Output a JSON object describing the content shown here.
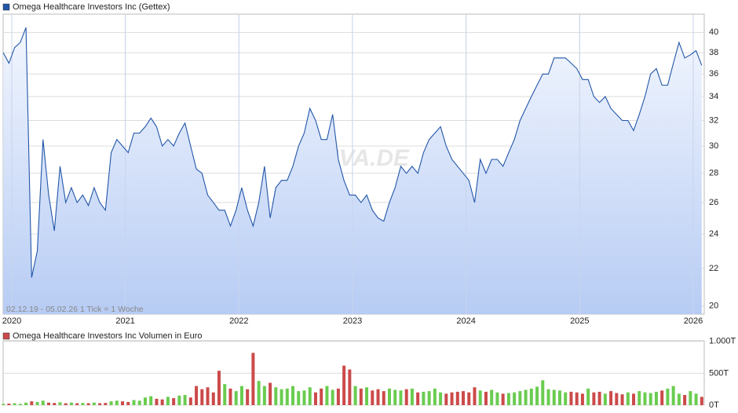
{
  "chart_data": [
    {
      "type": "line",
      "log": true,
      "grid": true,
      "annotation": "02.12.19 - 05.02.26   1 Tick = 1 Woche",
      "watermark": "ARIVA.DE",
      "x": [
        2019.925,
        2019.975,
        2020.025,
        2020.075,
        2020.125,
        2020.175,
        2020.225,
        2020.275,
        2020.325,
        2020.375,
        2020.425,
        2020.475,
        2020.525,
        2020.575,
        2020.625,
        2020.675,
        2020.725,
        2020.775,
        2020.825,
        2020.875,
        2020.925,
        2020.975,
        2021.025,
        2021.075,
        2021.125,
        2021.175,
        2021.225,
        2021.275,
        2021.325,
        2021.375,
        2021.425,
        2021.475,
        2021.525,
        2021.575,
        2021.625,
        2021.675,
        2021.725,
        2021.775,
        2021.825,
        2021.875,
        2021.925,
        2021.975,
        2022.025,
        2022.075,
        2022.125,
        2022.175,
        2022.225,
        2022.275,
        2022.325,
        2022.375,
        2022.425,
        2022.475,
        2022.525,
        2022.575,
        2022.625,
        2022.675,
        2022.725,
        2022.775,
        2022.825,
        2022.875,
        2022.925,
        2022.975,
        2023.025,
        2023.075,
        2023.125,
        2023.175,
        2023.225,
        2023.275,
        2023.325,
        2023.375,
        2023.425,
        2023.475,
        2023.525,
        2023.575,
        2023.625,
        2023.675,
        2023.725,
        2023.775,
        2023.825,
        2023.875,
        2023.925,
        2023.975,
        2024.025,
        2024.075,
        2024.125,
        2024.175,
        2024.225,
        2024.275,
        2024.325,
        2024.375,
        2024.425,
        2024.475,
        2024.525,
        2024.575,
        2024.625,
        2024.675,
        2024.725,
        2024.775,
        2024.825,
        2024.875,
        2024.925,
        2024.975,
        2025.025,
        2025.075,
        2025.125,
        2025.175,
        2025.225,
        2025.275,
        2025.325,
        2025.375,
        2025.425,
        2025.475,
        2025.525,
        2025.575,
        2025.625,
        2025.675,
        2025.725,
        2025.775,
        2025.825,
        2025.875,
        2025.925,
        2025.975,
        2026.025,
        2026.075
      ],
      "series": [
        {
          "name": "Omega Healthcare Investors Inc (Gettex)",
          "color": "#2256a8",
          "values": [
            38,
            37,
            38.5,
            39,
            40.5,
            21.5,
            23,
            30.5,
            26.5,
            24.2,
            28.5,
            26,
            27,
            26,
            26.5,
            25.8,
            27,
            26,
            25.5,
            29.5,
            30.5,
            30,
            29.5,
            31,
            31,
            31.5,
            32.2,
            31.5,
            30,
            30.5,
            30,
            31,
            31.8,
            30,
            28.3,
            28,
            26.5,
            26,
            25.5,
            25.5,
            24.5,
            25.5,
            27,
            25.5,
            24.5,
            26,
            28.5,
            25,
            27,
            27.5,
            27.5,
            28.5,
            30,
            31,
            33,
            32,
            30.5,
            30.5,
            32.5,
            29,
            27.5,
            26.5,
            26.5,
            26,
            26.5,
            25.5,
            25,
            24.8,
            26,
            27,
            28.5,
            28,
            28.5,
            28,
            29.5,
            30.5,
            31,
            31.5,
            30,
            29,
            28.5,
            28,
            27.5,
            26,
            29,
            28,
            29,
            29,
            28.5,
            29.5,
            30.5,
            32,
            33,
            34,
            35,
            36,
            36,
            37.5,
            37.5,
            37.5,
            37,
            36.5,
            35.5,
            35.5,
            34,
            33.5,
            34,
            33,
            32.5,
            32,
            32,
            31.2,
            32.5,
            34,
            36,
            36.5,
            35,
            35,
            37,
            39,
            37.5,
            37.8,
            38.2,
            36.8
          ]
        }
      ],
      "xlim": [
        2019.924,
        2026.097
      ],
      "xticks": [
        2020,
        2021,
        2022,
        2023,
        2024,
        2025,
        2026
      ],
      "ylim": [
        19.6,
        41.9
      ],
      "yticks": [
        20,
        22,
        24,
        26,
        28,
        30,
        32,
        34,
        36,
        38,
        40
      ]
    },
    {
      "type": "bar",
      "grid": true,
      "up_color": "#6acc50",
      "down_color": "#cc4a4a",
      "x": [
        2019.925,
        2019.975,
        2020.025,
        2020.075,
        2020.125,
        2020.175,
        2020.225,
        2020.275,
        2020.325,
        2020.375,
        2020.425,
        2020.475,
        2020.525,
        2020.575,
        2020.625,
        2020.675,
        2020.725,
        2020.775,
        2020.825,
        2020.875,
        2020.925,
        2020.975,
        2021.025,
        2021.075,
        2021.125,
        2021.175,
        2021.225,
        2021.275,
        2021.325,
        2021.375,
        2021.425,
        2021.475,
        2021.525,
        2021.575,
        2021.625,
        2021.675,
        2021.725,
        2021.775,
        2021.825,
        2021.875,
        2021.925,
        2021.975,
        2022.025,
        2022.075,
        2022.125,
        2022.175,
        2022.225,
        2022.275,
        2022.325,
        2022.375,
        2022.425,
        2022.475,
        2022.525,
        2022.575,
        2022.625,
        2022.675,
        2022.725,
        2022.775,
        2022.825,
        2022.875,
        2022.925,
        2022.975,
        2023.025,
        2023.075,
        2023.125,
        2023.175,
        2023.225,
        2023.275,
        2023.325,
        2023.375,
        2023.425,
        2023.475,
        2023.525,
        2023.575,
        2023.625,
        2023.675,
        2023.725,
        2023.775,
        2023.825,
        2023.875,
        2023.925,
        2023.975,
        2024.025,
        2024.075,
        2024.125,
        2024.175,
        2024.225,
        2024.275,
        2024.325,
        2024.375,
        2024.425,
        2024.475,
        2024.525,
        2024.575,
        2024.625,
        2024.675,
        2024.725,
        2024.775,
        2024.825,
        2024.875,
        2024.925,
        2024.975,
        2025.025,
        2025.075,
        2025.125,
        2025.175,
        2025.225,
        2025.275,
        2025.325,
        2025.375,
        2025.425,
        2025.475,
        2025.525,
        2025.575,
        2025.625,
        2025.675,
        2025.725,
        2025.775,
        2025.825,
        2025.875,
        2025.925,
        2025.975,
        2026.025,
        2026.075
      ],
      "series": [
        {
          "name": "Omega Healthcare Investors Inc Volumen in Euro",
          "color": "#cc4a4a",
          "values": [
            20,
            25,
            30,
            20,
            40,
            60,
            50,
            70,
            40,
            35,
            45,
            30,
            40,
            30,
            35,
            30,
            40,
            30,
            35,
            60,
            70,
            60,
            50,
            80,
            70,
            120,
            140,
            100,
            90,
            130,
            110,
            150,
            160,
            120,
            300,
            250,
            280,
            200,
            540,
            330,
            260,
            220,
            300,
            250,
            820,
            380,
            300,
            350,
            280,
            250,
            260,
            300,
            220,
            230,
            280,
            200,
            260,
            300,
            240,
            260,
            620,
            560,
            300,
            260,
            280,
            230,
            250,
            220,
            260,
            240,
            230,
            250,
            260,
            200,
            210,
            220,
            260,
            200,
            180,
            200,
            210,
            220,
            200,
            280,
            230,
            210,
            240,
            200,
            180,
            190,
            200,
            220,
            240,
            260,
            290,
            390,
            250,
            240,
            230,
            200,
            210,
            200,
            180,
            260,
            200,
            210,
            180,
            220,
            190,
            170,
            200,
            180,
            220,
            200,
            190,
            210,
            230,
            260,
            300,
            180,
            160,
            220,
            180,
            130
          ]
        }
      ],
      "xlim": [
        2019.924,
        2026.097
      ],
      "ylim": [
        0,
        1010
      ],
      "yticks": [
        {
          "value": 0,
          "label": "0T"
        },
        {
          "value": 500,
          "label": "500T"
        },
        {
          "value": 1000,
          "label": "1.000T"
        }
      ]
    }
  ]
}
